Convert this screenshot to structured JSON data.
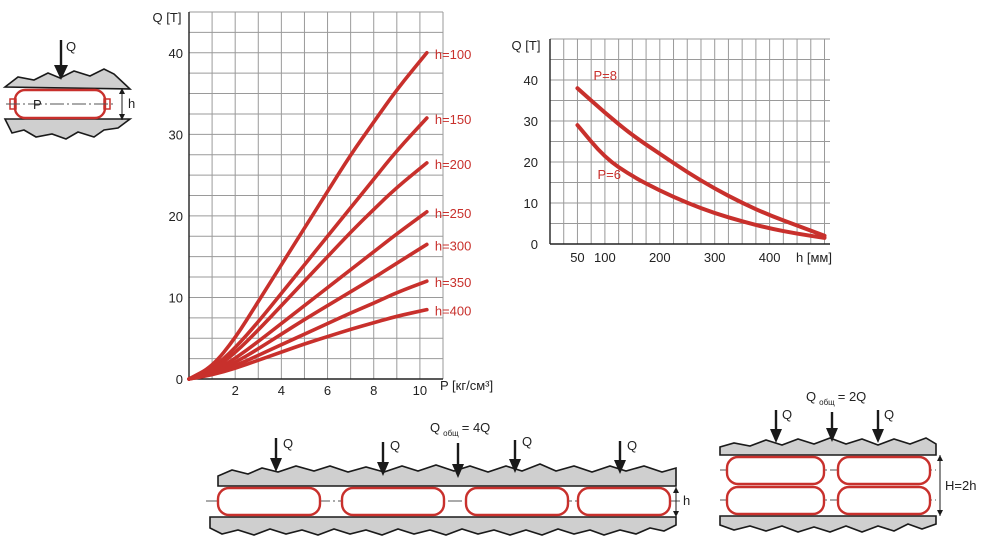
{
  "colors": {
    "curve": "#c8302c",
    "grid": "#9a9a9a",
    "rock": "#cfcfcf",
    "ink": "#1a1a1a"
  },
  "chart_data": [
    {
      "type": "line",
      "ylabel": "Q [T]",
      "xlabel": "P [кг/см³]",
      "xlim": [
        0,
        11
      ],
      "ylim": [
        0,
        45
      ],
      "x_ticks": [
        "2",
        "4",
        "6",
        "8",
        "10"
      ],
      "y_ticks": [
        "0",
        "10",
        "20",
        "30",
        "40"
      ],
      "grid": true,
      "series": [
        {
          "name": "h=100",
          "x": [
            0,
            1,
            2,
            3,
            4,
            5,
            6,
            7,
            8,
            9,
            10.3
          ],
          "values": [
            0,
            1.5,
            5,
            9.5,
            14,
            18.5,
            23,
            27.5,
            31.5,
            35.5,
            40
          ]
        },
        {
          "name": "h=150",
          "x": [
            0,
            1,
            2,
            3,
            4,
            5,
            6,
            7,
            8,
            9,
            10.3
          ],
          "values": [
            0,
            1.2,
            3.8,
            7,
            10.5,
            14,
            17.5,
            21,
            24.5,
            28,
            32
          ]
        },
        {
          "name": "h=200",
          "x": [
            0,
            1,
            2,
            3,
            4,
            5,
            6,
            7,
            8,
            9,
            10.3
          ],
          "values": [
            0,
            1,
            3.2,
            6,
            9,
            12,
            15,
            18,
            20.8,
            23.5,
            26.5
          ]
        },
        {
          "name": "h=250",
          "x": [
            0,
            1,
            2,
            3,
            4,
            5,
            6,
            7,
            8,
            9,
            10.3
          ],
          "values": [
            0,
            0.8,
            2.5,
            4.6,
            6.8,
            9,
            11.2,
            13.4,
            15.6,
            17.8,
            20.5
          ]
        },
        {
          "name": "h=300",
          "x": [
            0,
            1,
            2,
            3,
            4,
            5,
            6,
            7,
            8,
            9,
            10.3
          ],
          "values": [
            0,
            0.7,
            2,
            3.7,
            5.5,
            7.3,
            9,
            10.7,
            12.4,
            14.2,
            16.5
          ]
        },
        {
          "name": "h=350",
          "x": [
            0,
            1,
            2,
            3,
            4,
            5,
            6,
            7,
            8,
            9,
            10.3
          ],
          "values": [
            0,
            0.6,
            1.6,
            2.9,
            4.2,
            5.5,
            6.8,
            8.1,
            9.3,
            10.6,
            12
          ]
        },
        {
          "name": "h=400",
          "x": [
            0,
            1,
            2,
            3,
            4,
            5,
            6,
            7,
            8,
            9,
            10.3
          ],
          "values": [
            0,
            0.5,
            1.3,
            2.3,
            3.3,
            4.3,
            5.2,
            6.1,
            6.9,
            7.7,
            8.5
          ]
        }
      ]
    },
    {
      "type": "line",
      "ylabel": "Q [T]",
      "xlabel": "h [мм]",
      "xlim": [
        0,
        510
      ],
      "ylim": [
        0,
        50
      ],
      "x_ticks": [
        "50",
        "100",
        "200",
        "300",
        "400"
      ],
      "y_ticks": [
        "0",
        "10",
        "20",
        "30",
        "40"
      ],
      "grid": true,
      "series": [
        {
          "name": "P=8",
          "x": [
            50,
            100,
            150,
            200,
            250,
            300,
            350,
            400,
            450,
            500
          ],
          "values": [
            38,
            32,
            26.5,
            22,
            17.5,
            13.5,
            10,
            7,
            4.5,
            2
          ]
        },
        {
          "name": "P=6",
          "x": [
            50,
            100,
            150,
            200,
            250,
            300,
            350,
            400,
            450,
            500
          ],
          "values": [
            29,
            21,
            16.5,
            13,
            10,
            7.5,
            5.5,
            3.8,
            2.5,
            1.5
          ]
        }
      ]
    }
  ],
  "diagrams": {
    "single": {
      "load": "Q",
      "pressure": "P",
      "height": "h"
    },
    "row4": {
      "total_main": "Q",
      "total_sub": "общ",
      "total_value": "= 4Q",
      "loads": [
        "Q",
        "Q",
        "Q",
        "Q"
      ],
      "height": "h"
    },
    "stack2": {
      "total_main": "Q",
      "total_sub": "общ",
      "total_value": "= 2Q",
      "loads": [
        "Q",
        "Q"
      ],
      "height": "H=2h"
    }
  }
}
